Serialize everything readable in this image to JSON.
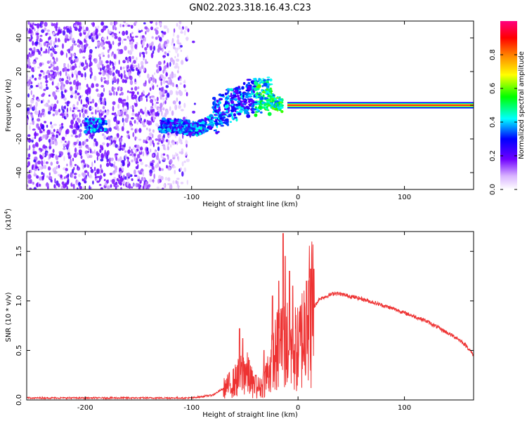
{
  "title": "GN02.2023.318.16.43.C23",
  "chart_data": [
    {
      "type": "heatmap",
      "xlabel": "Height of straight line (km)",
      "ylabel": "Frequency (Hz)",
      "xlim": [
        -255,
        165
      ],
      "ylim": [
        -50,
        50
      ],
      "xticks": [
        -200,
        -100,
        0,
        100
      ],
      "yticks": [
        -40,
        -20,
        0,
        20,
        40
      ],
      "colorbar": {
        "label": "Normalized spectral amplitude",
        "range": [
          0,
          1
        ],
        "ticks": [
          "0.0",
          "0.2",
          "0.4",
          "0.6",
          "0.8"
        ],
        "colors": [
          "#ffffff",
          "#6f00ff",
          "#0000ff",
          "#00ffff",
          "#00ff00",
          "#ffff00",
          "#ff8000",
          "#ff0000",
          "#ff0080"
        ]
      },
      "features": {
        "noise_region_x": [
          -255,
          -105
        ],
        "narrowband_line": {
          "x_start": -10,
          "x_end": 165,
          "frequency": 0
        },
        "dispersive_track": [
          {
            "x": -200,
            "y": -12
          },
          {
            "x": -120,
            "y": -12
          },
          {
            "x": -95,
            "y": -14
          },
          {
            "x": -75,
            "y": -8
          },
          {
            "x": -60,
            "y": -2
          },
          {
            "x": -45,
            "y": 2
          },
          {
            "x": -30,
            "y": 4
          },
          {
            "x": -15,
            "y": 0
          }
        ]
      }
    },
    {
      "type": "line",
      "xlabel": "Height of straight line (km)",
      "ylabel": "SNR (10 * v/v)",
      "multiplier": "(x10",
      "multiplier_exp": "4",
      "multiplier_close": ")",
      "xlim": [
        -255,
        165
      ],
      "ylim": [
        0,
        1.7
      ],
      "xticks": [
        -200,
        -100,
        0,
        100
      ],
      "yticks": [
        "0.0",
        "0.5",
        "1.0",
        "1.5"
      ],
      "color": "#ee3333",
      "envelope": [
        {
          "x": -255,
          "y": 0.02
        },
        {
          "x": -150,
          "y": 0.02
        },
        {
          "x": -100,
          "y": 0.02
        },
        {
          "x": -80,
          "y": 0.05
        },
        {
          "x": -60,
          "y": 0.18
        },
        {
          "x": -50,
          "y": 0.3
        },
        {
          "x": -42,
          "y": 0.15
        },
        {
          "x": -35,
          "y": 0.12
        },
        {
          "x": -25,
          "y": 0.35
        },
        {
          "x": -15,
          "y": 0.6
        },
        {
          "x": -8,
          "y": 0.55
        },
        {
          "x": 0,
          "y": 0.5
        },
        {
          "x": 10,
          "y": 0.85
        },
        {
          "x": 20,
          "y": 1.02
        },
        {
          "x": 35,
          "y": 1.08
        },
        {
          "x": 60,
          "y": 1.02
        },
        {
          "x": 90,
          "y": 0.92
        },
        {
          "x": 120,
          "y": 0.8
        },
        {
          "x": 150,
          "y": 0.62
        },
        {
          "x": 158,
          "y": 0.55
        },
        {
          "x": 165,
          "y": 0.45
        }
      ],
      "spikes": [
        {
          "x": -55,
          "y": 0.72
        },
        {
          "x": -52,
          "y": 0.62
        },
        {
          "x": -46,
          "y": 0.4
        },
        {
          "x": -40,
          "y": 0.25
        },
        {
          "x": -32,
          "y": 0.5
        },
        {
          "x": -24,
          "y": 1.05
        },
        {
          "x": -18,
          "y": 1.2
        },
        {
          "x": -14,
          "y": 1.68
        },
        {
          "x": -12,
          "y": 1.45
        },
        {
          "x": -8,
          "y": 1.3
        },
        {
          "x": -5,
          "y": 1.15
        },
        {
          "x": 8,
          "y": 1.2
        },
        {
          "x": 15,
          "y": 1.32
        }
      ]
    }
  ]
}
